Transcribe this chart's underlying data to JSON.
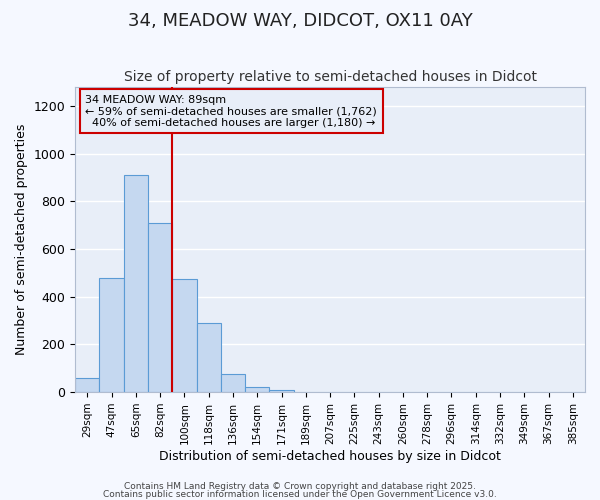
{
  "title": "34, MEADOW WAY, DIDCOT, OX11 0AY",
  "subtitle": "Size of property relative to semi-detached houses in Didcot",
  "xlabel": "Distribution of semi-detached houses by size in Didcot",
  "ylabel": "Number of semi-detached properties",
  "bin_labels": [
    "29sqm",
    "47sqm",
    "65sqm",
    "82sqm",
    "100sqm",
    "118sqm",
    "136sqm",
    "154sqm",
    "171sqm",
    "189sqm",
    "207sqm",
    "225sqm",
    "243sqm",
    "260sqm",
    "278sqm",
    "296sqm",
    "314sqm",
    "332sqm",
    "349sqm",
    "367sqm",
    "385sqm"
  ],
  "bar_heights": [
    60,
    480,
    910,
    710,
    475,
    290,
    75,
    20,
    10,
    0,
    0,
    0,
    0,
    0,
    0,
    0,
    0,
    0,
    0,
    0,
    0
  ],
  "bar_color": "#c5d8f0",
  "bar_edge_color": "#5b9bd5",
  "property_label": "34 MEADOW WAY: 89sqm",
  "pct_smaller": 59,
  "count_smaller": 1762,
  "pct_larger": 40,
  "count_larger": 1180,
  "vline_color": "#cc0000",
  "annotation_box_color": "#cc0000",
  "ylim": [
    0,
    1280
  ],
  "yticks": [
    0,
    200,
    400,
    600,
    800,
    1000,
    1200
  ],
  "background_color": "#e8eef8",
  "plot_bg_color": "#e8eef8",
  "grid_color": "#ffffff",
  "footer1": "Contains HM Land Registry data © Crown copyright and database right 2025.",
  "footer2": "Contains public sector information licensed under the Open Government Licence v3.0.",
  "title_fontsize": 13,
  "subtitle_fontsize": 10
}
